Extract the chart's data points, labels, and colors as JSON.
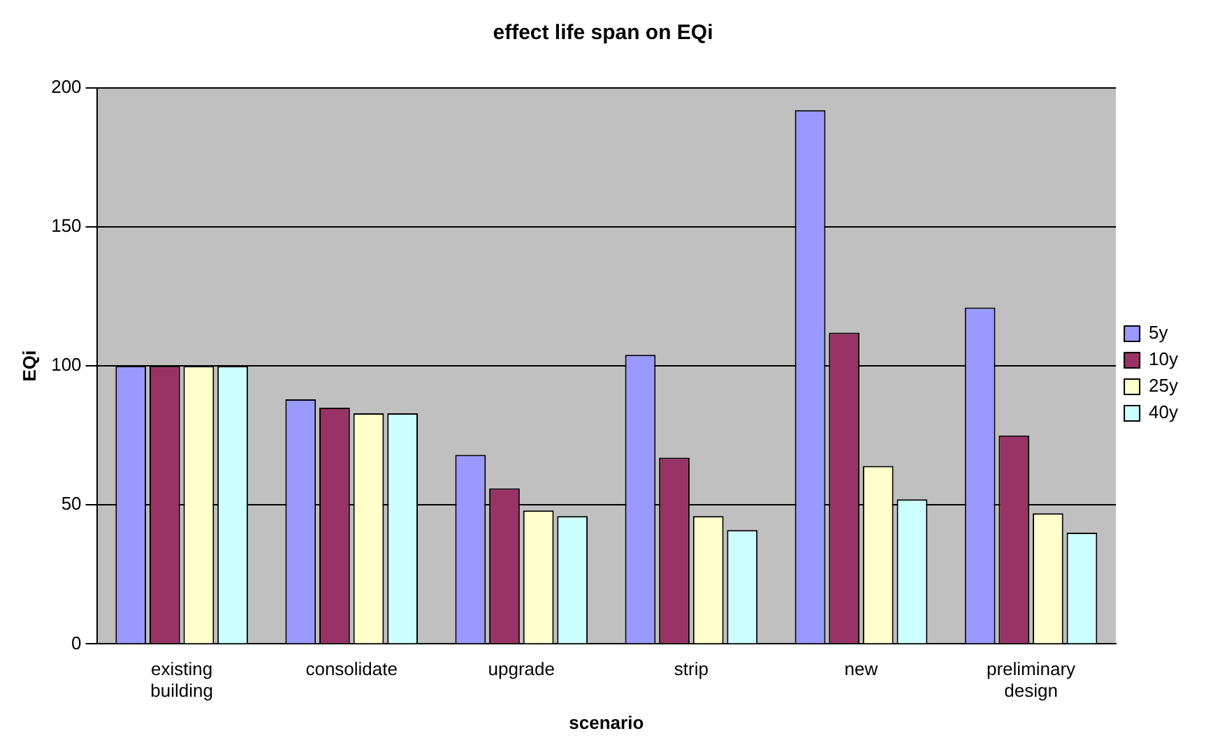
{
  "chart_data": {
    "type": "bar",
    "title": "effect life span on EQi",
    "xlabel": "scenario",
    "ylabel": "EQi",
    "categories": [
      "existing building",
      "consolidate",
      "upgrade",
      "strip",
      "new",
      "preliminary design"
    ],
    "series": [
      {
        "name": "5y",
        "color": "#9999ff",
        "values": [
          100,
          88,
          68,
          104,
          192,
          121
        ]
      },
      {
        "name": "10y",
        "color": "#993366",
        "values": [
          100,
          85,
          56,
          67,
          112,
          75
        ]
      },
      {
        "name": "25y",
        "color": "#ffffcc",
        "values": [
          100,
          83,
          48,
          46,
          64,
          47
        ]
      },
      {
        "name": "40y",
        "color": "#ccffff",
        "values": [
          100,
          83,
          46,
          41,
          52,
          40
        ]
      }
    ],
    "ylim": [
      0,
      200
    ],
    "yticks": [
      0,
      50,
      100,
      150,
      200
    ],
    "grid": "y",
    "legend": "right"
  }
}
